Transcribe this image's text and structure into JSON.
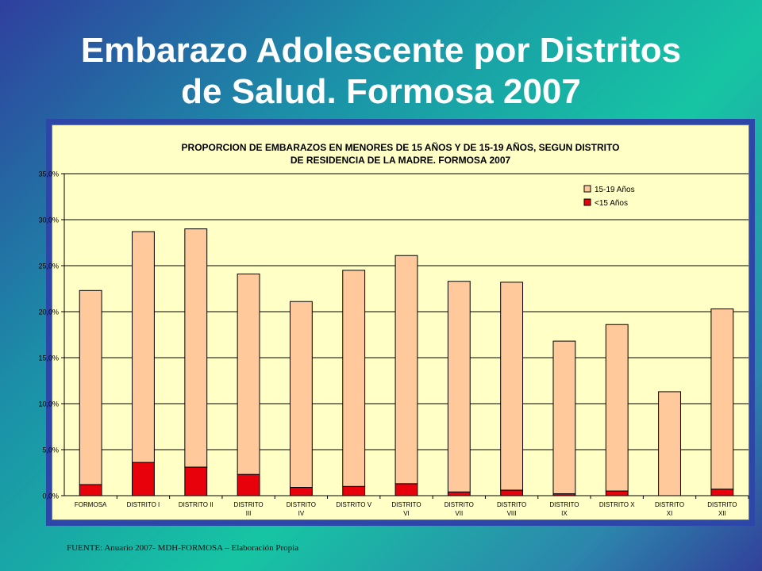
{
  "slide": {
    "title_line1": "Embarazo Adolescente por Distritos",
    "title_line2": "de Salud. Formosa 2007",
    "source": "FUENTE: Anuario 2007- MDH-FORMOSA – Elaboración Propia"
  },
  "colors": {
    "series_1519": "#ffc99b",
    "series_lt15": "#e8000b",
    "plot_bg": "#ffffc6",
    "frame": "#2c47a8"
  },
  "chart_data": {
    "type": "bar",
    "stacked": true,
    "title_line1": "PROPORCION DE EMBARAZOS EN MENORES DE 15 AÑOS Y DE 15-19 AÑOS, SEGUN DISTRITO",
    "title_line2": "DE RESIDENCIA DE LA MADRE. FORMOSA 2007",
    "xlabel": "",
    "ylabel": "",
    "ylim": [
      0,
      35
    ],
    "yticks": [
      "0,0%",
      "5,0%",
      "10,0%",
      "15,0%",
      "20,0%",
      "25,0%",
      "30,0%",
      "35,0%"
    ],
    "grid": true,
    "legend_position": "top-right",
    "categories": [
      [
        "FORMOSA"
      ],
      [
        "DISTRITO I"
      ],
      [
        "DISTRITO II"
      ],
      [
        "DISTRITO",
        "III"
      ],
      [
        "DISTRITO",
        "IV"
      ],
      [
        "DISTRITO V"
      ],
      [
        "DISTRITO",
        "VI"
      ],
      [
        "DISTRITO",
        "VII"
      ],
      [
        "DISTRITO",
        "VIII"
      ],
      [
        "DISTRITO",
        "IX"
      ],
      [
        "DISTRITO X"
      ],
      [
        "DISTRITO",
        "XI"
      ],
      [
        "DISTRITO",
        "XII"
      ]
    ],
    "series": [
      {
        "name": "<15 Años",
        "values": [
          1.2,
          3.6,
          3.1,
          2.3,
          0.9,
          1.0,
          1.3,
          0.4,
          0.6,
          0.2,
          0.5,
          0.0,
          0.7
        ]
      },
      {
        "name": "15-19 Años",
        "values": [
          21.1,
          25.1,
          25.9,
          21.8,
          20.2,
          23.5,
          24.8,
          22.9,
          22.6,
          16.6,
          18.1,
          11.3,
          19.6
        ]
      }
    ]
  }
}
